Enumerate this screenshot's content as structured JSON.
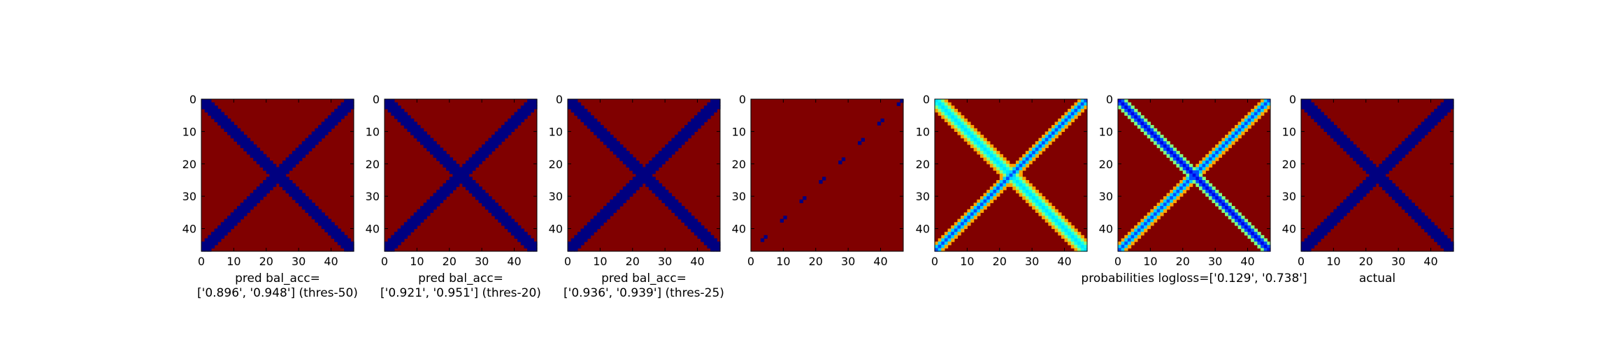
{
  "figure": {
    "panel_count": 7
  },
  "chart_data": [
    {
      "type": "heatmap",
      "title": "",
      "xlabel": [
        "pred bal_acc=",
        "['0.896', '0.948'] (thres-50)"
      ],
      "ylabel": "",
      "xticks": [
        0,
        10,
        20,
        30,
        40
      ],
      "yticks": [
        0,
        10,
        20,
        30,
        40
      ],
      "xlim": [
        0,
        47
      ],
      "ylim": [
        47,
        0
      ],
      "grid_size": 47,
      "colormap": "jet",
      "background_color": "#800000",
      "pattern": "cross",
      "bands": [
        {
          "direction": "main",
          "offset": 0,
          "half_width": 2.4,
          "value": 0.0
        },
        {
          "direction": "anti",
          "offset": 0,
          "half_width": 2.0,
          "value": 0.0
        }
      ]
    },
    {
      "type": "heatmap",
      "title": "",
      "xlabel": [
        "pred bal_acc=",
        "['0.921', '0.951'] (thres-20)"
      ],
      "ylabel": "",
      "xticks": [
        0,
        10,
        20,
        30,
        40
      ],
      "yticks": [
        0,
        10,
        20,
        30,
        40
      ],
      "xlim": [
        0,
        47
      ],
      "ylim": [
        47,
        0
      ],
      "grid_size": 47,
      "colormap": "jet",
      "background_color": "#800000",
      "pattern": "cross",
      "bands": [
        {
          "direction": "main",
          "offset": 0,
          "half_width": 2.6,
          "value": 0.0
        },
        {
          "direction": "anti",
          "offset": 0,
          "half_width": 2.2,
          "value": 0.0
        }
      ]
    },
    {
      "type": "heatmap",
      "title": "",
      "xlabel": [
        "pred bal_acc=",
        "['0.936', '0.939'] (thres-25)"
      ],
      "ylabel": "",
      "xticks": [
        0,
        10,
        20,
        30,
        40
      ],
      "yticks": [
        0,
        10,
        20,
        30,
        40
      ],
      "xlim": [
        0,
        47
      ],
      "ylim": [
        47,
        0
      ],
      "grid_size": 47,
      "colormap": "jet",
      "background_color": "#800000",
      "pattern": "cross",
      "bands": [
        {
          "direction": "main",
          "offset": 0,
          "half_width": 2.8,
          "value": 0.0
        },
        {
          "direction": "anti",
          "offset": 0,
          "half_width": 2.0,
          "value": 0.0
        }
      ]
    },
    {
      "type": "heatmap",
      "title": "",
      "xlabel": [],
      "ylabel": "",
      "xticks": [
        0,
        10,
        20,
        30,
        40
      ],
      "yticks": [
        0,
        10,
        20,
        30,
        40
      ],
      "xlim": [
        0,
        47
      ],
      "ylim": [
        47,
        0
      ],
      "grid_size": 47,
      "colormap": "jet",
      "background_color": "#800000",
      "pattern": "dashed-anti-diagonal",
      "bands": [
        {
          "direction": "anti",
          "offset": 0,
          "half_width": 0.5,
          "value": 0.0
        }
      ]
    },
    {
      "type": "heatmap",
      "title": "",
      "xlabel": [],
      "ylabel": "",
      "xticks": [
        0,
        10,
        20,
        30,
        40
      ],
      "yticks": [
        0,
        10,
        20,
        30,
        40
      ],
      "xlim": [
        0,
        47
      ],
      "ylim": [
        47,
        0
      ],
      "grid_size": 47,
      "colormap": "jet",
      "background_color": "#800000",
      "pattern": "probability-cross",
      "bands": [
        {
          "direction": "main",
          "offset": 0,
          "half_width": 4.0,
          "value": 0.35
        },
        {
          "direction": "anti",
          "offset": 0,
          "half_width": 2.5,
          "value": 0.2
        }
      ]
    },
    {
      "type": "heatmap",
      "title": "",
      "xlabel": [
        "probabilities logloss=['0.129', '0.738']"
      ],
      "ylabel": "",
      "xticks": [
        0,
        10,
        20,
        30,
        40
      ],
      "yticks": [
        0,
        10,
        20,
        30,
        40
      ],
      "xlim": [
        0,
        47
      ],
      "ylim": [
        47,
        0
      ],
      "grid_size": 47,
      "colormap": "jet",
      "background_color": "#800000",
      "pattern": "probability-cross",
      "bands": [
        {
          "direction": "main",
          "offset": 0,
          "half_width": 3.0,
          "value": 0.1
        },
        {
          "direction": "anti",
          "offset": 0,
          "half_width": 2.5,
          "value": 0.2
        }
      ]
    },
    {
      "type": "heatmap",
      "title": "",
      "xlabel": [
        "actual"
      ],
      "ylabel": "",
      "xticks": [
        0,
        10,
        20,
        30,
        40
      ],
      "yticks": [
        0,
        10,
        20,
        30,
        40
      ],
      "xlim": [
        0,
        47
      ],
      "ylim": [
        47,
        0
      ],
      "grid_size": 47,
      "colormap": "jet",
      "background_color": "#800000",
      "pattern": "cross",
      "bands": [
        {
          "direction": "main",
          "offset": 0,
          "half_width": 2.5,
          "value": 0.0
        },
        {
          "direction": "anti",
          "offset": 0,
          "half_width": 2.2,
          "value": 0.0
        }
      ]
    }
  ]
}
